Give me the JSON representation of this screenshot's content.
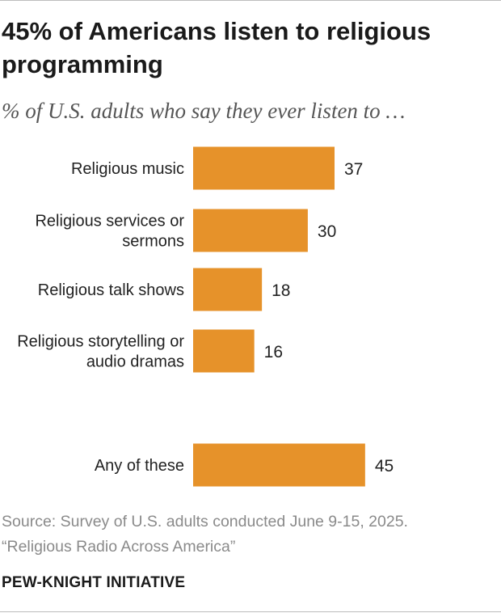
{
  "title": "45% of Americans listen to religious programming",
  "subtitle": "% of U.S. adults who say they ever listen to …",
  "chart_data": {
    "type": "bar",
    "orientation": "horizontal",
    "categories": [
      [
        "Religious music"
      ],
      [
        "Religious services or",
        "sermons"
      ],
      [
        "Religious talk shows"
      ],
      [
        "Religious storytelling or",
        "audio dramas"
      ],
      [
        "Any of these"
      ]
    ],
    "values": [
      37,
      30,
      18,
      16,
      45
    ],
    "value_labels": [
      "37",
      "30",
      "18",
      "16",
      "45"
    ],
    "xlim": [
      0,
      100
    ],
    "bar_color": "#E6922A",
    "title": "45% of Americans listen to religious programming",
    "xlabel": "",
    "ylabel": ""
  },
  "source": {
    "line1": "Source: Survey of U.S. adults conducted June 9-15, 2025.",
    "line2": "“Religious Radio Across America”"
  },
  "brand": "PEW-KNIGHT INITIATIVE"
}
